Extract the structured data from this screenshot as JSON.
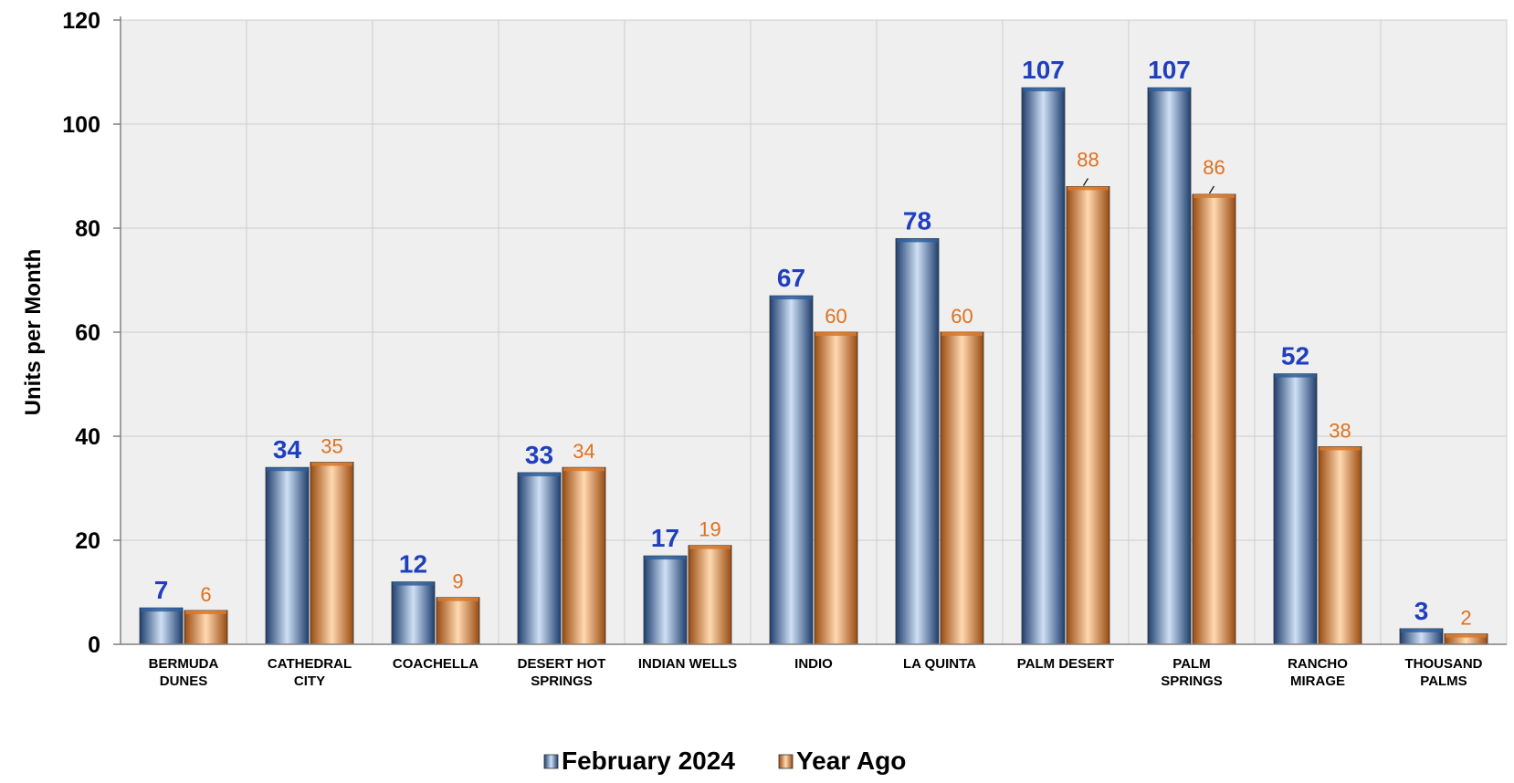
{
  "chart_data": {
    "type": "bar",
    "title": "",
    "xlabel": "",
    "ylabel": "Units per Month",
    "ylim": [
      0,
      120
    ],
    "yticks": [
      "0",
      "20",
      "40",
      "60",
      "80",
      "100",
      "120"
    ],
    "grid": true,
    "legend_position": "bottom",
    "categories": [
      [
        "BERMUDA",
        "DUNES"
      ],
      [
        "CATHEDRAL",
        "CITY"
      ],
      [
        "COACHELLA"
      ],
      [
        "DESERT HOT",
        "SPRINGS"
      ],
      [
        "INDIAN WELLS"
      ],
      [
        "INDIO"
      ],
      [
        "LA QUINTA"
      ],
      [
        "PALM DESERT"
      ],
      [
        "PALM",
        "SPRINGS"
      ],
      [
        "RANCHO",
        "MIRAGE"
      ],
      [
        "THOUSAND",
        "PALMS"
      ]
    ],
    "series": [
      {
        "name": "February 2024",
        "color": "#2F5F9E",
        "label_color": "#1F3FBF",
        "values": [
          7,
          34,
          12,
          33,
          17,
          67,
          78,
          107,
          107,
          52,
          3
        ],
        "labels": [
          "7",
          "34",
          "12",
          "33",
          "17",
          "67",
          "78",
          "107",
          "107",
          "52",
          "3"
        ]
      },
      {
        "name": "Year Ago",
        "color": "#D8782A",
        "label_color": "#E0701E",
        "values": [
          6.5,
          35,
          9,
          34,
          19,
          60,
          60,
          88,
          86.5,
          38,
          2
        ],
        "labels": [
          "6",
          "35",
          "9",
          "34",
          "19",
          "60",
          "60",
          "88",
          "86",
          "38",
          "2"
        ]
      }
    ]
  }
}
